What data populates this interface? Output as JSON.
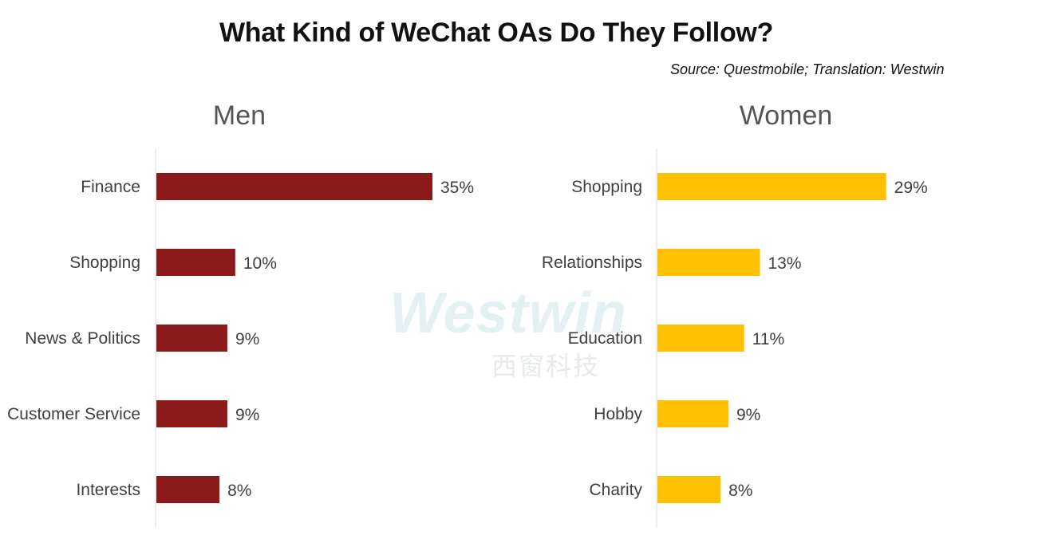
{
  "title": "What Kind of WeChat OAs Do They Follow?",
  "source": "Source: Questmobile; Translation: Westwin",
  "watermark": {
    "text": "Westwin",
    "subtext": "西窗科技"
  },
  "colors": {
    "men": "#8b1a1a",
    "women": "#ffc000",
    "axis": "#d9d9d9",
    "label": "#404040"
  },
  "chart_data": [
    {
      "type": "bar",
      "orientation": "horizontal",
      "title": "Men",
      "categories": [
        "Finance",
        "Shopping",
        "News & Politics",
        "Customer Service",
        "Interests"
      ],
      "values": [
        35,
        10,
        9,
        9,
        8
      ],
      "value_labels": [
        "35%",
        "10%",
        "9%",
        "9%",
        "8%"
      ],
      "unit": "%",
      "xlim": [
        0,
        40
      ],
      "grid": false
    },
    {
      "type": "bar",
      "orientation": "horizontal",
      "title": "Women",
      "categories": [
        "Shopping",
        "Relationships",
        "Education",
        "Hobby",
        "Charity"
      ],
      "values": [
        29,
        13,
        11,
        9,
        8
      ],
      "value_labels": [
        "29%",
        "13%",
        "11%",
        "9%",
        "8%"
      ],
      "unit": "%",
      "xlim": [
        0,
        40
      ],
      "grid": false
    }
  ]
}
